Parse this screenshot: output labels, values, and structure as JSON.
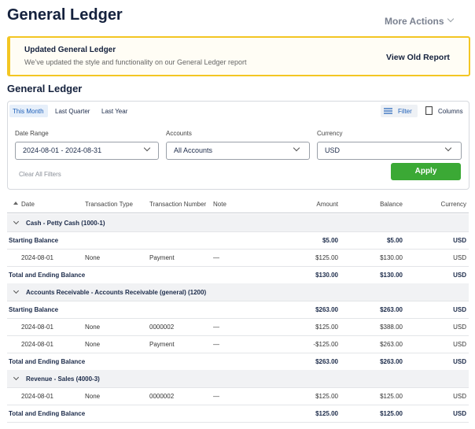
{
  "header": {
    "title": "General Ledger",
    "more_actions": "More Actions"
  },
  "banner": {
    "title": "Updated General Ledger",
    "text": "We’ve updated the style and functionality on our General Ledger report",
    "link": "View Old Report"
  },
  "section_title": "General Ledger",
  "tabs": [
    "This Month",
    "Last Quarter",
    "Last Year"
  ],
  "toolbar": {
    "filter": "Filter",
    "columns": "Columns"
  },
  "filters": {
    "date_range": {
      "label": "Date Range",
      "value": "2024-08-01 - 2024-08-31"
    },
    "accounts": {
      "label": "Accounts",
      "value": "All Accounts"
    },
    "currency": {
      "label": "Currency",
      "value": "USD"
    },
    "clear": "Clear All Filters",
    "apply": "Apply"
  },
  "table": {
    "columns": [
      "Date",
      "Transaction Type",
      "Transaction Number",
      "Note",
      "Amount",
      "Balance",
      "Currency"
    ],
    "groups": [
      {
        "account": "Cash - Petty Cash (1000-1)",
        "starting": {
          "label": "Starting Balance",
          "amount": "$5.00",
          "balance": "$5.00",
          "currency": "USD"
        },
        "transactions": [
          [
            "2024-08-01",
            "None",
            "Payment",
            "—",
            "$125.00",
            "$130.00",
            "USD"
          ]
        ],
        "ending": {
          "label": "Total and Ending Balance",
          "amount": "$130.00",
          "balance": "$130.00",
          "currency": "USD"
        }
      },
      {
        "account": "Accounts Receivable - Accounts Receivable (general) (1200)",
        "starting": {
          "label": "Starting Balance",
          "amount": "$263.00",
          "balance": "$263.00",
          "currency": "USD"
        },
        "transactions": [
          [
            "2024-08-01",
            "None",
            "0000002",
            "—",
            "$125.00",
            "$388.00",
            "USD"
          ],
          [
            "2024-08-01",
            "None",
            "Payment",
            "—",
            "-$125.00",
            "$263.00",
            "USD"
          ]
        ],
        "ending": {
          "label": "Total and Ending Balance",
          "amount": "$263.00",
          "balance": "$263.00",
          "currency": "USD"
        }
      },
      {
        "account": "Revenue - Sales (4000-3)",
        "transactions": [
          [
            "2024-08-01",
            "None",
            "0000002",
            "—",
            "$125.00",
            "$125.00",
            "USD"
          ]
        ],
        "ending": {
          "label": "Total and Ending Balance",
          "amount": "$125.00",
          "balance": "$125.00",
          "currency": "USD"
        }
      }
    ]
  }
}
